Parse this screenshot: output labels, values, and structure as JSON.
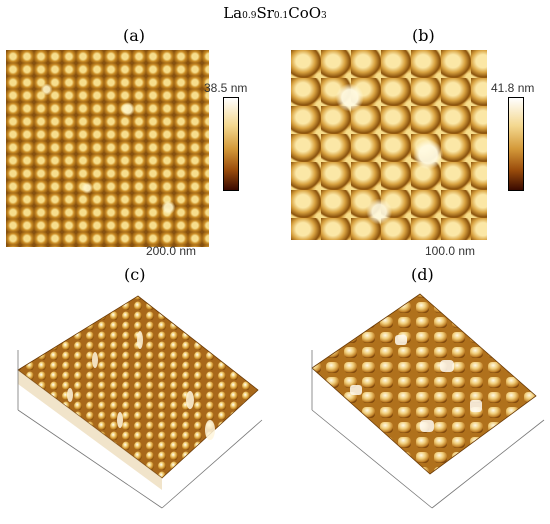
{
  "title": {
    "parts": [
      {
        "text": "La",
        "sub": false
      },
      {
        "text": "0.9",
        "sub": true
      },
      {
        "text": "Sr",
        "sub": false
      },
      {
        "text": "0.1",
        "sub": true
      },
      {
        "text": "CoO",
        "sub": false
      },
      {
        "text": "3",
        "sub": true
      }
    ]
  },
  "panels": {
    "a": {
      "label": "(a)",
      "colorbar_max": "38.5 nm",
      "scan_size": "200.0 nm"
    },
    "b": {
      "label": "(b)",
      "colorbar_max": "41.8 nm",
      "scan_size": "100.0 nm"
    },
    "c": {
      "label": "(c)"
    },
    "d": {
      "label": "(d)"
    }
  },
  "colors": {
    "afm_light": "#fff2c0",
    "afm_mid": "#c98b24",
    "afm_dark": "#6a3a06",
    "colorbar_bottom": "#3a0a00"
  }
}
